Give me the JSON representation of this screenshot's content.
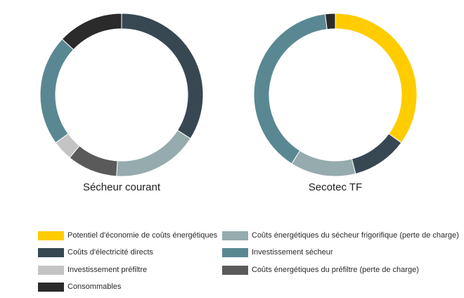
{
  "chart_data": [
    {
      "type": "pie",
      "title": "Sécheur courant",
      "slices": [
        {
          "label": "Coûts d'électricité directs",
          "value": 34
        },
        {
          "label": "Coûts énergétiques du sécheur frigorifique (perte de charge)",
          "value": 17
        },
        {
          "label": "Coûts énergétiques du préfiltre (perte de charge)",
          "value": 10
        },
        {
          "label": "Investissement préfiltre",
          "value": 4
        },
        {
          "label": "Investissement sécheur",
          "value": 22
        },
        {
          "label": "Consommables",
          "value": 13
        }
      ]
    },
    {
      "type": "pie",
      "title": "Secotec TF",
      "slices": [
        {
          "label": "Potentiel d'économie de coûts énergétiques",
          "value": 35
        },
        {
          "label": "Coûts d'électricité directs",
          "value": 11
        },
        {
          "label": "Coûts énergétiques du sécheur frigorifique (perte de charge)",
          "value": 13
        },
        {
          "label": "Investissement sécheur",
          "value": 39
        },
        {
          "label": "Consommables",
          "value": 2
        }
      ]
    }
  ],
  "legend": [
    {
      "label": "Potentiel d'économie de coûts énergétiques",
      "color": "#ffcc00"
    },
    {
      "label": "Coûts d'électricité directs",
      "color": "#374853"
    },
    {
      "label": "Investissement préfiltre",
      "color": "#c4c4c4"
    },
    {
      "label": "Consommables",
      "color": "#2b2b2b"
    },
    {
      "label": "Coûts énergétiques du sécheur frigorifique (perte de charge)",
      "color": "#95abad"
    },
    {
      "label": "Investissement sécheur",
      "color": "#5a8892"
    },
    {
      "label": "Coûts énergétiques du préfiltre (perte de charge)",
      "color": "#5a5a5a"
    }
  ]
}
